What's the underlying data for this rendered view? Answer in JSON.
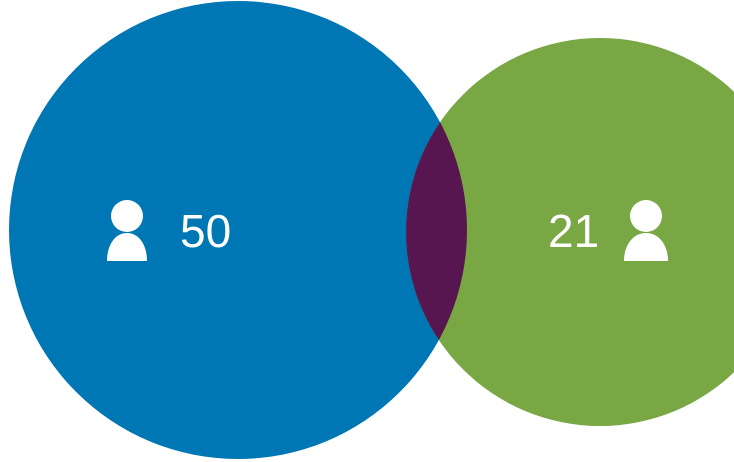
{
  "diagram": {
    "type": "venn",
    "sets": [
      {
        "id": "left",
        "count": "50",
        "icon": "user-icon",
        "color": "#0077B5"
      },
      {
        "id": "right",
        "count": "21",
        "icon": "user-icon",
        "color": "#78A744"
      }
    ],
    "overlap": {
      "color": "#581650"
    },
    "text_color": "#FFFFFF",
    "background": "#FFFFFF"
  }
}
